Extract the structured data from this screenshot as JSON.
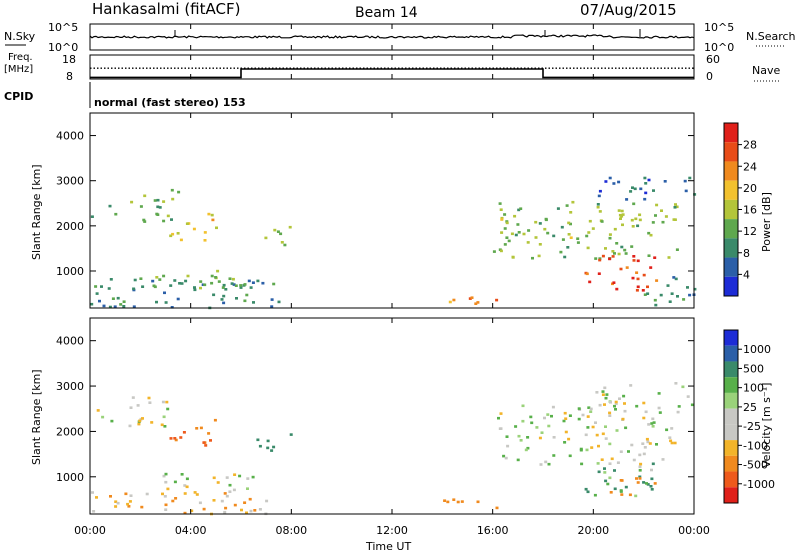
{
  "header": {
    "station": "Hankasalmi (fitACF)",
    "beam": "Beam 14",
    "date": "07/Aug/2015"
  },
  "noise_panel": {
    "left_label": "N.Sky",
    "right_label": "N.Search",
    "ticks_left": [
      "10^5",
      "10^0"
    ],
    "ticks_right": [
      "10^5",
      "10^0"
    ]
  },
  "freq_panel": {
    "left_label_1": "Freq.",
    "left_label_2": "[MHz]",
    "right_label": "Nave",
    "ticks_left": [
      "18",
      "8"
    ],
    "ticks_right": [
      "60",
      "0"
    ]
  },
  "cpid": {
    "label": "CPID",
    "value": "normal (fast stereo) 153"
  },
  "colors": {
    "power_scale": [
      "#1d2cd6",
      "#2b5fa8",
      "#3a8a6a",
      "#5fa84e",
      "#b3c53a",
      "#f2c12e",
      "#f08a1e",
      "#e84c18",
      "#e0201a"
    ],
    "velocity_scale": [
      "#e0201a",
      "#ee5a1c",
      "#f08a1e",
      "#f2b42a",
      "#c8c8c4",
      "#c8c8c4",
      "#9ad27a",
      "#58b04a",
      "#3a8a6a",
      "#2b5fa8",
      "#1d2cd6"
    ]
  },
  "chart_data": [
    {
      "type": "heatmap",
      "title": "Power",
      "xlabel": "Time UT",
      "ylabel": "Slant Range [km]",
      "colorbar_label": "Power [dB]",
      "colorbar_ticks": [
        "28",
        "24",
        "20",
        "16",
        "12",
        "8",
        "4"
      ],
      "colorbar_range": [
        0,
        32
      ],
      "y_ticks": [
        "4000",
        "3000",
        "2000",
        "1000"
      ],
      "x_ticks": [
        "00:00",
        "04:00",
        "08:00",
        "12:00",
        "16:00",
        "20:00",
        "00:00"
      ],
      "xlim_hours": [
        0,
        24
      ],
      "ylim_km": [
        180,
        4500
      ],
      "echo_regions": [
        {
          "t0": 0.0,
          "t1": 7.5,
          "r0": 200,
          "r1": 900,
          "power": 8
        },
        {
          "t0": 2.5,
          "t1": 6.5,
          "r0": 600,
          "r1": 1100,
          "power": 12
        },
        {
          "t0": 0.0,
          "t1": 1.0,
          "r0": 2200,
          "r1": 2500,
          "power": 10
        },
        {
          "t0": 1.5,
          "t1": 3.5,
          "r0": 2100,
          "r1": 2900,
          "power": 12
        },
        {
          "t0": 3.0,
          "t1": 5.0,
          "r0": 1700,
          "r1": 2300,
          "power": 18
        },
        {
          "t0": 6.5,
          "t1": 8.0,
          "r0": 1600,
          "r1": 2000,
          "power": 14
        },
        {
          "t0": 14.0,
          "t1": 16.5,
          "r0": 300,
          "r1": 550,
          "power": 22
        },
        {
          "t0": 16.0,
          "t1": 23.5,
          "r0": 1300,
          "r1": 2600,
          "power": 14
        },
        {
          "t0": 19.5,
          "t1": 22.5,
          "r0": 600,
          "r1": 1400,
          "power": 28
        },
        {
          "t0": 20.0,
          "t1": 24.0,
          "r0": 2600,
          "r1": 3100,
          "power": 6
        },
        {
          "t0": 22.0,
          "t1": 24.0,
          "r0": 200,
          "r1": 900,
          "power": 8
        }
      ]
    },
    {
      "type": "heatmap",
      "title": "Velocity",
      "xlabel": "Time UT",
      "ylabel": "Slant Range [km]",
      "colorbar_label": "Velocity [m s⁻¹]",
      "colorbar_ticks": [
        "1000",
        "500",
        "100",
        "25",
        "-25",
        "-100",
        "-500",
        "-1000"
      ],
      "y_ticks": [
        "4000",
        "3000",
        "2000",
        "1000"
      ],
      "x_ticks": [
        "00:00",
        "04:00",
        "08:00",
        "12:00",
        "16:00",
        "20:00",
        "00:00"
      ],
      "xlim_hours": [
        0,
        24
      ],
      "ylim_km": [
        180,
        4500
      ],
      "echo_regions": [
        {
          "t0": 0.0,
          "t1": 7.5,
          "r0": 200,
          "r1": 700,
          "velocity": -100
        },
        {
          "t0": 2.5,
          "t1": 6.5,
          "r0": 600,
          "r1": 1100,
          "velocity": 0
        },
        {
          "t0": 0.0,
          "t1": 1.0,
          "r0": 2200,
          "r1": 2500,
          "velocity": 0
        },
        {
          "t0": 1.5,
          "t1": 3.5,
          "r0": 2100,
          "r1": 2900,
          "velocity": 0
        },
        {
          "t0": 3.0,
          "t1": 5.0,
          "r0": 1700,
          "r1": 2300,
          "velocity": -500
        },
        {
          "t0": 6.5,
          "t1": 8.0,
          "r0": 1600,
          "r1": 2000,
          "velocity": 200
        },
        {
          "t0": 14.0,
          "t1": 16.5,
          "r0": 300,
          "r1": 550,
          "velocity": -200
        },
        {
          "t0": 16.0,
          "t1": 23.5,
          "r0": 1300,
          "r1": 2600,
          "velocity": 0
        },
        {
          "t0": 19.5,
          "t1": 22.5,
          "r0": 600,
          "r1": 1400,
          "velocity": 100
        },
        {
          "t0": 20.5,
          "t1": 22.5,
          "r0": 600,
          "r1": 1000,
          "velocity": -300
        },
        {
          "t0": 20.0,
          "t1": 24.0,
          "r0": 2600,
          "r1": 3100,
          "velocity": 0
        }
      ]
    }
  ],
  "nave_series": {
    "x_hours": [
      0,
      6.0,
      6.0,
      18.0,
      18.0,
      24
    ],
    "values": [
      4,
      4,
      25,
      25,
      4,
      4
    ]
  },
  "freq_series": {
    "x_hours": [
      0,
      24
    ],
    "values": [
      12.5,
      12.5
    ]
  }
}
